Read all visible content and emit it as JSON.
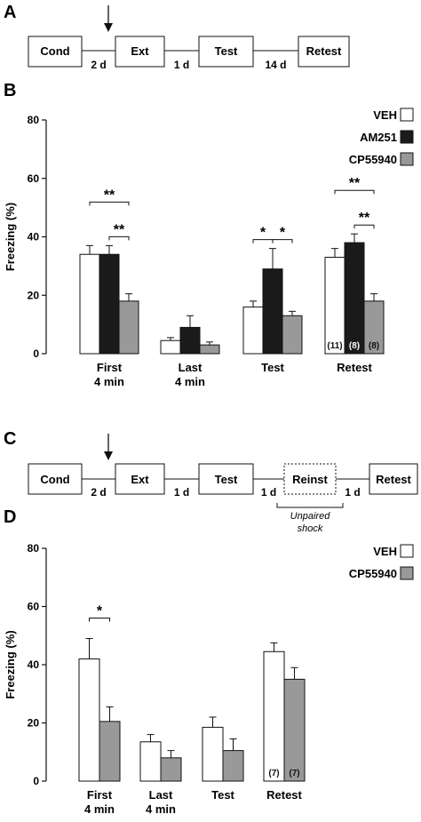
{
  "figure": {
    "panels": {
      "a": "A",
      "b": "B",
      "c": "C",
      "d": "D"
    }
  },
  "timeline_a": {
    "boxes": [
      "Cond",
      "Ext",
      "Test",
      "Retest"
    ],
    "gaps": [
      "2 d",
      "1 d",
      "14 d"
    ]
  },
  "timeline_c": {
    "boxes": [
      "Cond",
      "Ext",
      "Test",
      "Reinst",
      "Retest"
    ],
    "gaps": [
      "2 d",
      "1 d",
      "1 d",
      "1 d"
    ],
    "note_line1": "Unpaired",
    "note_line2": "shock"
  },
  "colors": {
    "VEH": "#ffffff",
    "AM251": "#1a1a1a",
    "CP55940": "#999999",
    "stroke": "#111111"
  },
  "chart_data": [
    {
      "type": "bar",
      "panel": "B",
      "title": "",
      "ylabel": "Freezing (%)",
      "xlabel": "",
      "ylim": [
        0,
        80
      ],
      "yticks": [
        "0",
        "20",
        "40",
        "60",
        "80"
      ],
      "legend_position": "top-right",
      "categories": [
        "First 4 min",
        "Last 4 min",
        "Test",
        "Retest"
      ],
      "category_lines": [
        [
          "First",
          "4 min"
        ],
        [
          "Last",
          "4 min"
        ],
        [
          "Test",
          ""
        ],
        [
          "Retest",
          ""
        ]
      ],
      "series": [
        {
          "name": "VEH",
          "values": [
            34,
            4.5,
            16,
            33
          ],
          "errors": [
            3,
            1,
            2,
            3
          ]
        },
        {
          "name": "AM251",
          "values": [
            34,
            9,
            29,
            38
          ],
          "errors": [
            3,
            4,
            7,
            3
          ]
        },
        {
          "name": "CP55940",
          "values": [
            18,
            3,
            13,
            18
          ],
          "errors": [
            2.5,
            1,
            1.5,
            2.5
          ]
        }
      ],
      "n_labels": [
        "(11)",
        "(8)",
        "(8)"
      ],
      "significance": [
        {
          "category": 0,
          "from": 0,
          "to": 2,
          "level": 4,
          "label": "**"
        },
        {
          "category": 0,
          "from": 1,
          "to": 2,
          "level": 1,
          "label": "**"
        },
        {
          "category": 2,
          "from": 0,
          "to": 1,
          "level": 1,
          "label": "*"
        },
        {
          "category": 2,
          "from": 1,
          "to": 2,
          "level": 1,
          "label": "*"
        },
        {
          "category": 3,
          "from": 0,
          "to": 2,
          "level": 4,
          "label": "**"
        },
        {
          "category": 3,
          "from": 1,
          "to": 2,
          "level": 1,
          "label": "**"
        }
      ]
    },
    {
      "type": "bar",
      "panel": "D",
      "title": "",
      "ylabel": "Freezing (%)",
      "xlabel": "",
      "ylim": [
        0,
        80
      ],
      "yticks": [
        "0",
        "20",
        "40",
        "60",
        "80"
      ],
      "legend_position": "top-right",
      "categories": [
        "First 4 min",
        "Last 4 min",
        "Test",
        "Retest"
      ],
      "category_lines": [
        [
          "First",
          "4 min"
        ],
        [
          "Last",
          "4 min"
        ],
        [
          "Test",
          ""
        ],
        [
          "Retest",
          ""
        ]
      ],
      "series": [
        {
          "name": "VEH",
          "values": [
            42,
            13.5,
            18.5,
            44.5
          ],
          "errors": [
            7,
            2.5,
            3.5,
            3
          ]
        },
        {
          "name": "CP55940",
          "values": [
            20.5,
            8,
            10.5,
            35
          ],
          "errors": [
            5,
            2.5,
            4,
            4
          ]
        }
      ],
      "n_labels": [
        "(7)",
        "(7)"
      ],
      "significance": [
        {
          "category": 0,
          "from": 0,
          "to": 1,
          "level": 2,
          "label": "*"
        }
      ]
    }
  ]
}
